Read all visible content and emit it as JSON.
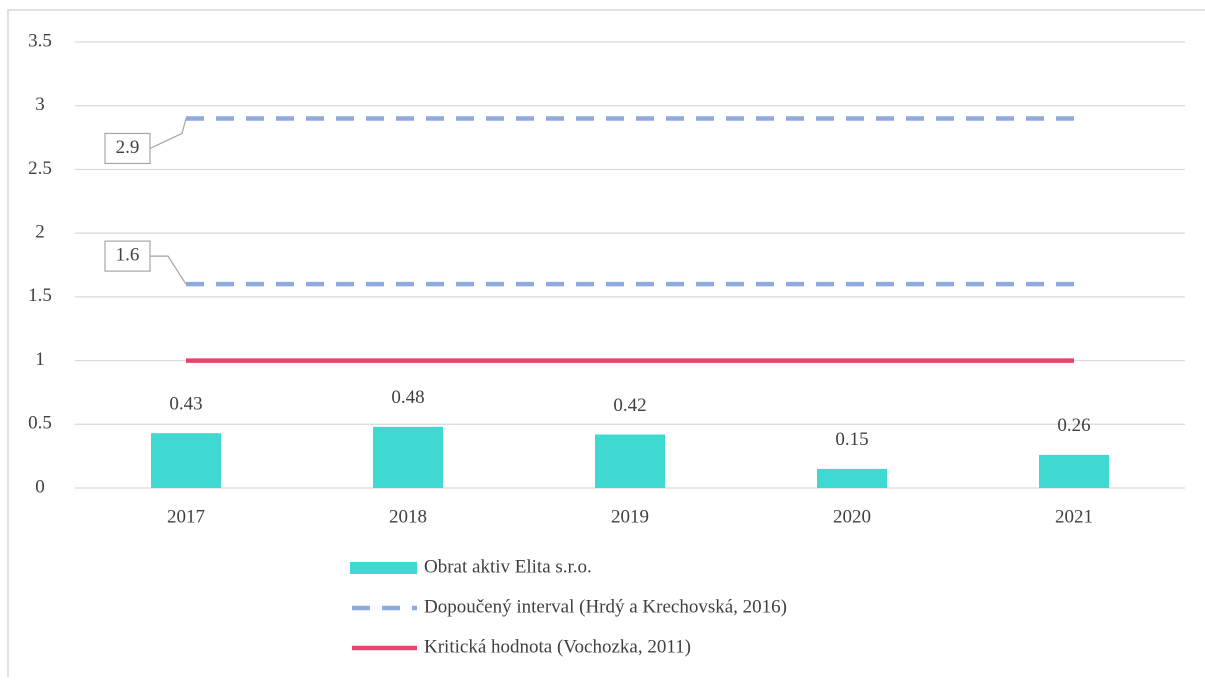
{
  "chart_data": {
    "type": "bar",
    "categories": [
      "2017",
      "2018",
      "2019",
      "2020",
      "2021"
    ],
    "ylim": [
      0,
      3.5
    ],
    "yticks": [
      0,
      0.5,
      1,
      1.5,
      2,
      2.5,
      3,
      3.5
    ],
    "grid": true,
    "series": [
      {
        "name": "Obrat aktiv Elita s.r.o.",
        "type": "bar",
        "color": "#40d9d2",
        "values": [
          0.43,
          0.48,
          0.42,
          0.15,
          0.26
        ]
      },
      {
        "name": "Dopoučený interval (Hrdý a Krechovská, 2016)",
        "type": "dashed",
        "color": "#8faadc",
        "lines": [
          {
            "values": [
              2.9,
              2.9,
              2.9,
              2.9,
              2.9
            ]
          },
          {
            "values": [
              1.6,
              1.6,
              1.6,
              1.6,
              1.6
            ]
          }
        ]
      },
      {
        "name": "Kritická hodnota (Vochozka, 2011)",
        "type": "line",
        "color": "#e8436e",
        "values": [
          1,
          1,
          1,
          1,
          1
        ]
      }
    ],
    "legend": "bottom"
  }
}
